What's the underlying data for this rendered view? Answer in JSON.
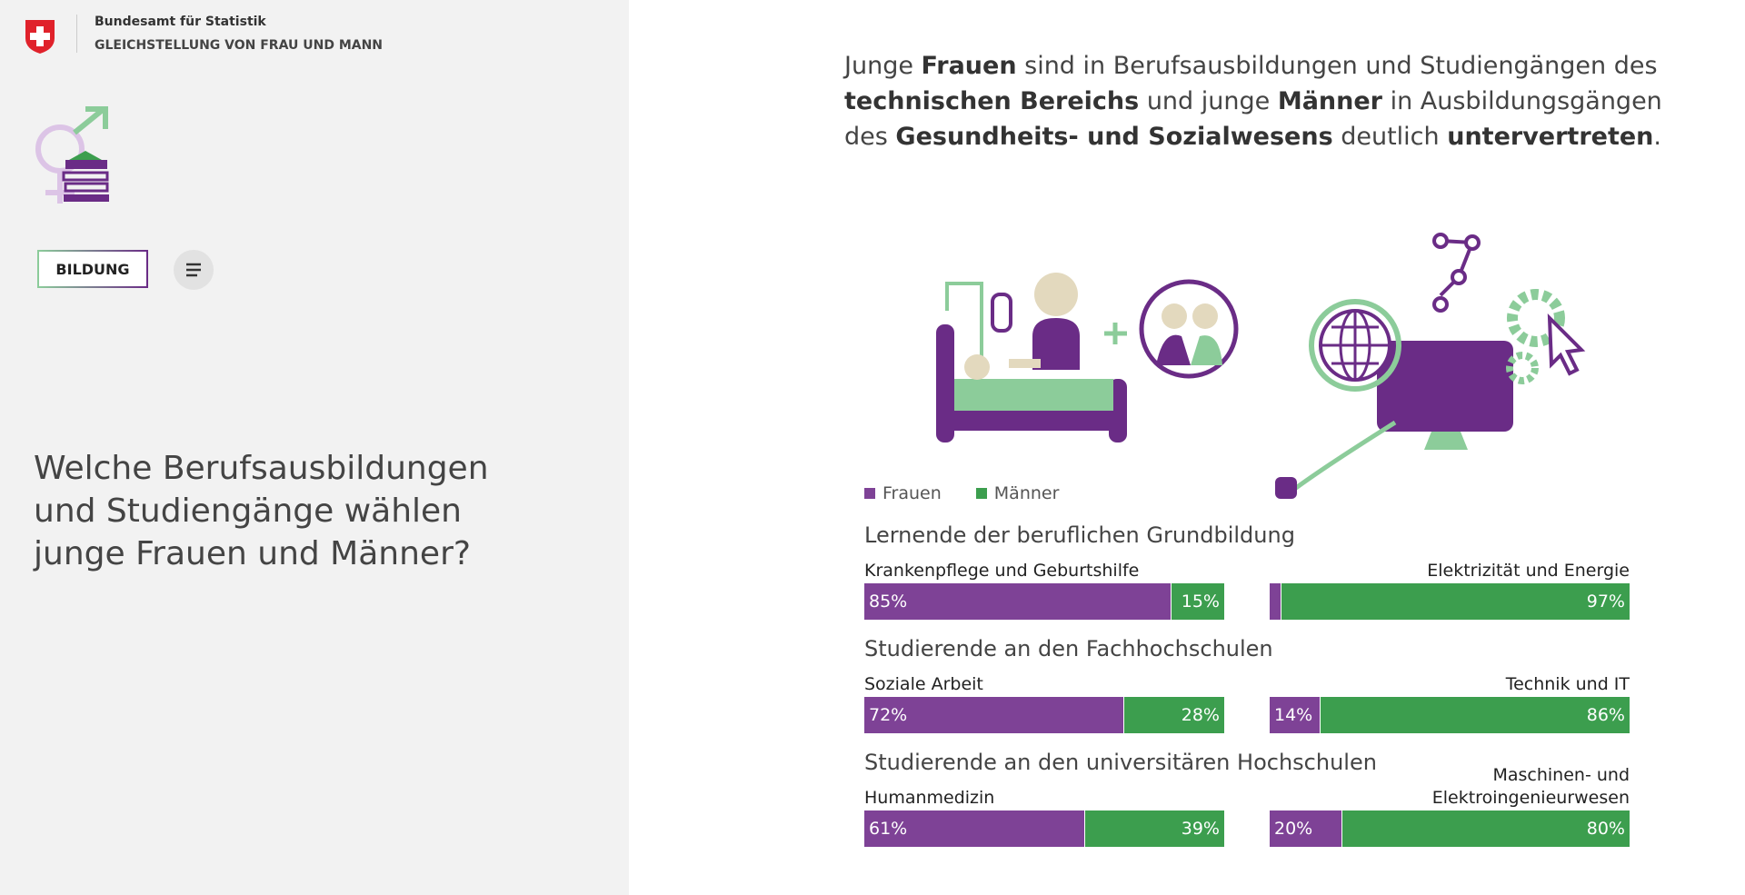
{
  "header": {
    "agency": "Bundesamt für Statistik",
    "section": "GLEICHSTELLUNG VON FRAU UND MANN"
  },
  "nav": {
    "button": "BILDUNG"
  },
  "question": "Welche Berufsausbildungen und Studiengänge wählen junge Frauen und Männer?",
  "intro": [
    {
      "text": "Junge ",
      "bold": false
    },
    {
      "text": "Frauen",
      "bold": true
    },
    {
      "text": " sind in Berufsausbildungen und Studiengängen des ",
      "bold": false
    },
    {
      "text": "technischen Bereichs",
      "bold": true
    },
    {
      "text": " und junge ",
      "bold": false
    },
    {
      "text": "Männer",
      "bold": true
    },
    {
      "text": " in Ausbildungsgängen des ",
      "bold": false
    },
    {
      "text": "Gesundheits- und Sozialwesens",
      "bold": true
    },
    {
      "text": " deutlich ",
      "bold": false
    },
    {
      "text": "untervertreten",
      "bold": true
    },
    {
      "text": ".",
      "bold": false
    }
  ],
  "chart_data": [
    {
      "type": "bar",
      "title": "Lernende der beruflichen Grundbildung",
      "categories": [
        "Krankenpflege und Geburtshilfe",
        "Elektrizität und Energie"
      ],
      "series": [
        {
          "name": "Frauen",
          "color": "#7e4296",
          "values": [
            85,
            3
          ],
          "value_labels": [
            "85%",
            null
          ]
        },
        {
          "name": "Männer",
          "color": "#3c9e4e",
          "values": [
            15,
            97
          ],
          "value_labels": [
            "15%",
            "97%"
          ]
        }
      ]
    },
    {
      "type": "bar",
      "title": "Studierende an den Fachhochschulen",
      "categories": [
        "Soziale Arbeit",
        "Technik und IT"
      ],
      "series": [
        {
          "name": "Frauen",
          "color": "#7e4296",
          "values": [
            72,
            14
          ],
          "value_labels": [
            "72%",
            "14%"
          ]
        },
        {
          "name": "Männer",
          "color": "#3c9e4e",
          "values": [
            28,
            86
          ],
          "value_labels": [
            "28%",
            "86%"
          ]
        }
      ]
    },
    {
      "type": "bar",
      "title": "Studierende an den universitären Hochschulen",
      "categories": [
        "Humanmedizin",
        "Maschinen- und Elektroingenieurwesen"
      ],
      "series": [
        {
          "name": "Frauen",
          "color": "#7e4296",
          "values": [
            61,
            20
          ],
          "value_labels": [
            "61%",
            "20%"
          ]
        },
        {
          "name": "Männer",
          "color": "#3c9e4e",
          "values": [
            39,
            80
          ],
          "value_labels": [
            "39%",
            "80%"
          ]
        }
      ]
    }
  ]
}
